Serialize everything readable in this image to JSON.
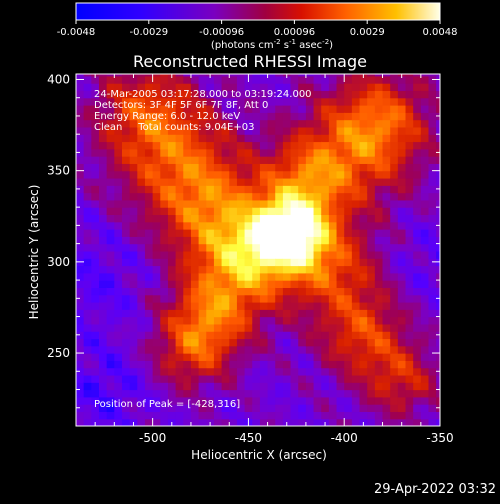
{
  "colorbar": {
    "ticks": [
      "-0.0048",
      "-0.0029",
      "-0.00096",
      "0.00096",
      "0.0029",
      "0.0048"
    ],
    "units_prefix": "(photons cm",
    "units_exp1": "-2",
    "units_mid": " s",
    "units_exp2": "-1",
    "units_mid2": " asec",
    "units_exp3": "-2",
    "units_suffix": ")"
  },
  "chart_data": {
    "type": "heatmap",
    "title": "Reconstructed RHESSI Image",
    "xlabel": "Heliocentric X (arcsec)",
    "ylabel": "Heliocentric Y (arcsec)",
    "xlim": [
      -540,
      -350
    ],
    "ylim": [
      210,
      403
    ],
    "x_ticks": [
      "-500",
      "-450",
      "-400",
      "-350"
    ],
    "y_ticks": [
      "400",
      "350",
      "300",
      "250"
    ],
    "x_tick_values": [
      -500,
      -450,
      -400,
      -350
    ],
    "y_tick_values": [
      400,
      350,
      300,
      250
    ],
    "colormap": [
      "#0000ff",
      "#5500ff",
      "#7a00c8",
      "#a00050",
      "#d82000",
      "#ff5a00",
      "#ffb000",
      "#ffff40",
      "#ffffff"
    ],
    "value_range": [
      -0.0048,
      0.0048
    ],
    "peak": [
      -428,
      316
    ],
    "annotations": [
      "24-Mar-2005 03:17:28.000 to 03:19:24.000",
      "Detectors: 3F 4F 5F 6F 7F 8F, Att 0",
      "Energy Range: 6.0 - 12.0 keV",
      "Clean     Total counts: 9.04E+03"
    ],
    "peak_label": "Position of Peak = [-428,316]"
  },
  "footer": {
    "timestamp": "29-Apr-2022 03:32"
  }
}
